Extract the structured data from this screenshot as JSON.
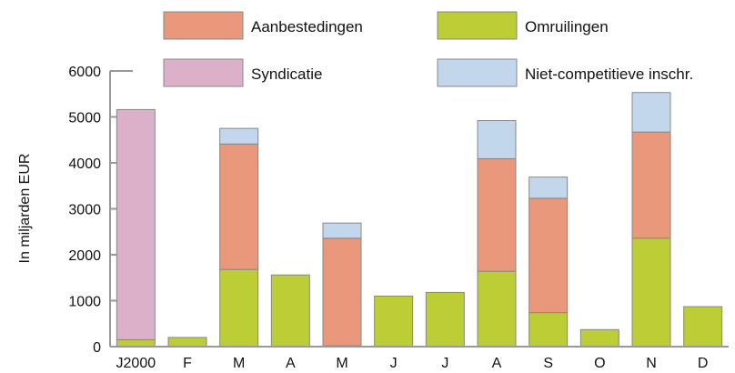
{
  "chart_data": {
    "type": "bar",
    "stacked": true,
    "title": "",
    "xlabel": "",
    "ylabel": "In miljarden EUR",
    "ylim": [
      0,
      6000
    ],
    "yticks": [
      "0",
      "1000",
      "2000",
      "3000",
      "4000",
      "5000",
      "6000"
    ],
    "categories": [
      "J2000",
      "F",
      "M",
      "A",
      "M",
      "J",
      "J",
      "A",
      "S",
      "O",
      "N",
      "D"
    ],
    "legend_position": "top",
    "series": [
      {
        "name": "Omruilingen",
        "color": "#bccd35",
        "values": [
          150,
          200,
          1680,
          1560,
          20,
          1100,
          1180,
          1640,
          740,
          370,
          2360,
          870
        ]
      },
      {
        "name": "Aanbestedingen",
        "color": "#e9987b",
        "values": [
          0,
          0,
          2730,
          0,
          2340,
          0,
          0,
          2450,
          2490,
          0,
          2310,
          0
        ]
      },
      {
        "name": "Niet-competitieve inschr.",
        "color": "#c3d7ec",
        "values": [
          0,
          0,
          340,
          0,
          330,
          0,
          0,
          830,
          460,
          0,
          860,
          0
        ]
      },
      {
        "name": "Syndicatie",
        "color": "#dcb0c9",
        "values": [
          5010,
          0,
          0,
          0,
          0,
          0,
          0,
          0,
          0,
          0,
          0,
          0
        ]
      }
    ],
    "legend_order": [
      "Aanbestedingen",
      "Omruilingen",
      "Syndicatie",
      "Niet-competitieve inschr."
    ],
    "grid": false
  }
}
